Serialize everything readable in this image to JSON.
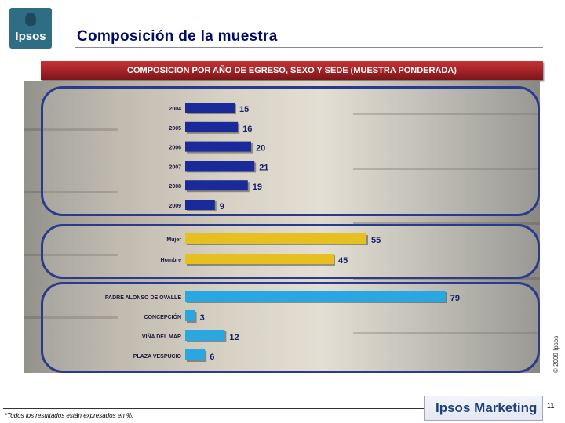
{
  "header": {
    "logo_text": "Ipsos",
    "title": "Composición de la muestra",
    "banner": "COMPOSICION POR  AÑO DE EGRESO, SEXO Y SEDE (MUESTRA PONDERADA)"
  },
  "footer": {
    "footnote": "*Todos los resultados están expresados en %.",
    "brand": "Ipsos Marketing",
    "page_number": "11",
    "copyright": "© 2009 Ipsos"
  },
  "colors": {
    "year_bar": "#1a2a9a",
    "sex_bar": "#e6c020",
    "site_bar": "#2aa6e0",
    "panel_border": "#2a3a8c",
    "banner": "#a82326"
  },
  "chart_data": [
    {
      "type": "bar",
      "orientation": "horizontal",
      "categories": [
        "2004",
        "2005",
        "2006",
        "2007",
        "2008",
        "2009"
      ],
      "values": [
        15,
        16,
        20,
        21,
        19,
        9
      ]
    },
    {
      "type": "bar",
      "orientation": "horizontal",
      "categories": [
        "Mujer",
        "Hombre"
      ],
      "values": [
        55,
        45
      ]
    },
    {
      "type": "bar",
      "orientation": "horizontal",
      "categories": [
        "PADRE ALONSO DE OVALLE",
        "CONCEPCIÓN",
        "VIÑA DEL MAR",
        "PLAZA VESPUCIO"
      ],
      "values": [
        79,
        3,
        12,
        6
      ]
    }
  ]
}
